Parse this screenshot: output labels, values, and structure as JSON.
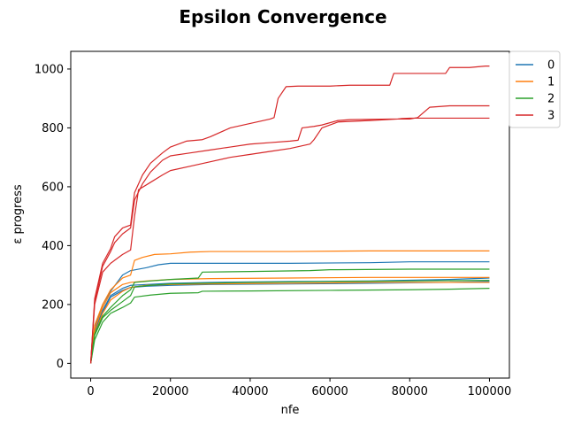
{
  "chart_data": {
    "type": "line",
    "title": "Epsilon Convergence",
    "xlabel": "nfe",
    "ylabel": "ε progress",
    "xlim": [
      -5000,
      105000
    ],
    "ylim": [
      -50,
      1060
    ],
    "xticks": [
      0,
      20000,
      40000,
      60000,
      80000,
      100000
    ],
    "yticks": [
      0,
      200,
      400,
      600,
      800,
      1000
    ],
    "legend_position": "upper-right-outside",
    "grid": false,
    "series_colors": {
      "0": "#1f77b4",
      "1": "#ff7f0e",
      "2": "#2ca02c",
      "3": "#d62728"
    },
    "legend": [
      {
        "name": "0",
        "color": "#1f77b4"
      },
      {
        "name": "1",
        "color": "#ff7f0e"
      },
      {
        "name": "2",
        "color": "#2ca02c"
      },
      {
        "name": "3",
        "color": "#d62728"
      }
    ],
    "series": [
      {
        "name": "0",
        "group": "0",
        "points": [
          [
            0,
            0
          ],
          [
            1000,
            120
          ],
          [
            3000,
            200
          ],
          [
            5000,
            245
          ],
          [
            8000,
            300
          ],
          [
            10000,
            315
          ],
          [
            14000,
            325
          ],
          [
            17000,
            335
          ],
          [
            20000,
            340
          ],
          [
            30000,
            340
          ],
          [
            50000,
            340
          ],
          [
            70000,
            342
          ],
          [
            80000,
            345
          ],
          [
            90000,
            345
          ],
          [
            100000,
            345
          ]
        ]
      },
      {
        "name": "0",
        "group": "0",
        "points": [
          [
            0,
            0
          ],
          [
            1000,
            110
          ],
          [
            3000,
            180
          ],
          [
            5000,
            230
          ],
          [
            8000,
            255
          ],
          [
            10000,
            265
          ],
          [
            14000,
            268
          ],
          [
            20000,
            272
          ],
          [
            30000,
            275
          ],
          [
            50000,
            278
          ],
          [
            70000,
            280
          ],
          [
            90000,
            285
          ],
          [
            100000,
            290
          ]
        ]
      },
      {
        "name": "0",
        "group": "0",
        "points": [
          [
            0,
            0
          ],
          [
            1000,
            105
          ],
          [
            3000,
            175
          ],
          [
            5000,
            225
          ],
          [
            8000,
            248
          ],
          [
            10000,
            258
          ],
          [
            14000,
            262
          ],
          [
            20000,
            265
          ],
          [
            30000,
            268
          ],
          [
            50000,
            270
          ],
          [
            70000,
            272
          ],
          [
            90000,
            275
          ],
          [
            100000,
            278
          ]
        ]
      },
      {
        "name": "1",
        "group": "1",
        "points": [
          [
            0,
            0
          ],
          [
            1000,
            130
          ],
          [
            3000,
            200
          ],
          [
            5000,
            250
          ],
          [
            8000,
            290
          ],
          [
            10000,
            300
          ],
          [
            11000,
            350
          ],
          [
            13000,
            360
          ],
          [
            16000,
            370
          ],
          [
            20000,
            372
          ],
          [
            25000,
            378
          ],
          [
            30000,
            380
          ],
          [
            50000,
            380
          ],
          [
            70000,
            382
          ],
          [
            100000,
            382
          ]
        ]
      },
      {
        "name": "1",
        "group": "1",
        "points": [
          [
            0,
            0
          ],
          [
            1000,
            115
          ],
          [
            3000,
            190
          ],
          [
            5000,
            240
          ],
          [
            8000,
            268
          ],
          [
            10000,
            275
          ],
          [
            14000,
            280
          ],
          [
            20000,
            285
          ],
          [
            30000,
            288
          ],
          [
            50000,
            290
          ],
          [
            70000,
            292
          ],
          [
            100000,
            292
          ]
        ]
      },
      {
        "name": "1",
        "group": "1",
        "points": [
          [
            0,
            0
          ],
          [
            1000,
            100
          ],
          [
            3000,
            170
          ],
          [
            5000,
            215
          ],
          [
            8000,
            245
          ],
          [
            10000,
            258
          ],
          [
            14000,
            265
          ],
          [
            20000,
            268
          ],
          [
            30000,
            270
          ],
          [
            50000,
            272
          ],
          [
            70000,
            275
          ],
          [
            100000,
            275
          ]
        ]
      },
      {
        "name": "2",
        "group": "2",
        "points": [
          [
            0,
            0
          ],
          [
            1000,
            100
          ],
          [
            3000,
            160
          ],
          [
            5000,
            190
          ],
          [
            8000,
            230
          ],
          [
            10000,
            250
          ],
          [
            11000,
            275
          ],
          [
            15000,
            280
          ],
          [
            20000,
            285
          ],
          [
            27000,
            290
          ],
          [
            28000,
            310
          ],
          [
            40000,
            312
          ],
          [
            55000,
            315
          ],
          [
            60000,
            318
          ],
          [
            80000,
            320
          ],
          [
            100000,
            320
          ]
        ]
      },
      {
        "name": "2",
        "group": "2",
        "points": [
          [
            0,
            0
          ],
          [
            1000,
            95
          ],
          [
            3000,
            155
          ],
          [
            5000,
            180
          ],
          [
            8000,
            210
          ],
          [
            10000,
            230
          ],
          [
            11000,
            260
          ],
          [
            15000,
            265
          ],
          [
            20000,
            270
          ],
          [
            27000,
            272
          ],
          [
            40000,
            275
          ],
          [
            60000,
            278
          ],
          [
            80000,
            280
          ],
          [
            100000,
            282
          ]
        ]
      },
      {
        "name": "2",
        "group": "2",
        "points": [
          [
            0,
            0
          ],
          [
            1000,
            80
          ],
          [
            3000,
            140
          ],
          [
            5000,
            170
          ],
          [
            8000,
            190
          ],
          [
            10000,
            205
          ],
          [
            11000,
            225
          ],
          [
            15000,
            232
          ],
          [
            20000,
            238
          ],
          [
            27000,
            240
          ],
          [
            28000,
            245
          ],
          [
            40000,
            246
          ],
          [
            60000,
            248
          ],
          [
            80000,
            250
          ],
          [
            90000,
            252
          ],
          [
            100000,
            255
          ]
        ]
      },
      {
        "name": "3",
        "group": "3",
        "points": [
          [
            0,
            0
          ],
          [
            1000,
            220
          ],
          [
            3000,
            340
          ],
          [
            5000,
            390
          ],
          [
            6000,
            430
          ],
          [
            8000,
            460
          ],
          [
            10000,
            470
          ],
          [
            11000,
            580
          ],
          [
            13000,
            640
          ],
          [
            15000,
            680
          ],
          [
            18000,
            715
          ],
          [
            20000,
            735
          ],
          [
            24000,
            755
          ],
          [
            28000,
            760
          ],
          [
            30000,
            770
          ],
          [
            35000,
            800
          ],
          [
            40000,
            815
          ],
          [
            45000,
            830
          ],
          [
            46000,
            835
          ],
          [
            47000,
            900
          ],
          [
            49000,
            940
          ],
          [
            52000,
            942
          ],
          [
            60000,
            942
          ],
          [
            65000,
            945
          ],
          [
            75000,
            945
          ],
          [
            76000,
            985
          ],
          [
            80000,
            985
          ],
          [
            85000,
            985
          ],
          [
            89000,
            985
          ],
          [
            90000,
            1005
          ],
          [
            95000,
            1005
          ],
          [
            99000,
            1010
          ],
          [
            100000,
            1010
          ]
        ]
      },
      {
        "name": "3",
        "group": "3",
        "points": [
          [
            0,
            0
          ],
          [
            1000,
            210
          ],
          [
            3000,
            330
          ],
          [
            5000,
            380
          ],
          [
            6000,
            410
          ],
          [
            8000,
            440
          ],
          [
            10000,
            460
          ],
          [
            11000,
            555
          ],
          [
            13000,
            610
          ],
          [
            15000,
            650
          ],
          [
            18000,
            690
          ],
          [
            20000,
            705
          ],
          [
            25000,
            715
          ],
          [
            30000,
            725
          ],
          [
            35000,
            735
          ],
          [
            40000,
            745
          ],
          [
            45000,
            750
          ],
          [
            50000,
            755
          ],
          [
            52000,
            758
          ],
          [
            53000,
            800
          ],
          [
            56000,
            805
          ],
          [
            58000,
            810
          ],
          [
            62000,
            825
          ],
          [
            65000,
            828
          ],
          [
            75000,
            830
          ],
          [
            80000,
            830
          ],
          [
            82000,
            835
          ],
          [
            85000,
            870
          ],
          [
            90000,
            875
          ],
          [
            100000,
            875
          ]
        ]
      },
      {
        "name": "3",
        "group": "3",
        "points": [
          [
            0,
            0
          ],
          [
            1000,
            200
          ],
          [
            3000,
            310
          ],
          [
            5000,
            340
          ],
          [
            6000,
            350
          ],
          [
            8000,
            370
          ],
          [
            10000,
            385
          ],
          [
            11000,
            500
          ],
          [
            12000,
            590
          ],
          [
            15000,
            615
          ],
          [
            18000,
            640
          ],
          [
            20000,
            655
          ],
          [
            25000,
            670
          ],
          [
            30000,
            685
          ],
          [
            35000,
            700
          ],
          [
            40000,
            710
          ],
          [
            45000,
            720
          ],
          [
            50000,
            730
          ],
          [
            55000,
            745
          ],
          [
            56000,
            760
          ],
          [
            58000,
            800
          ],
          [
            62000,
            820
          ],
          [
            70000,
            825
          ],
          [
            77000,
            830
          ],
          [
            78000,
            832
          ],
          [
            80000,
            833
          ],
          [
            90000,
            833
          ],
          [
            100000,
            833
          ]
        ]
      }
    ]
  }
}
